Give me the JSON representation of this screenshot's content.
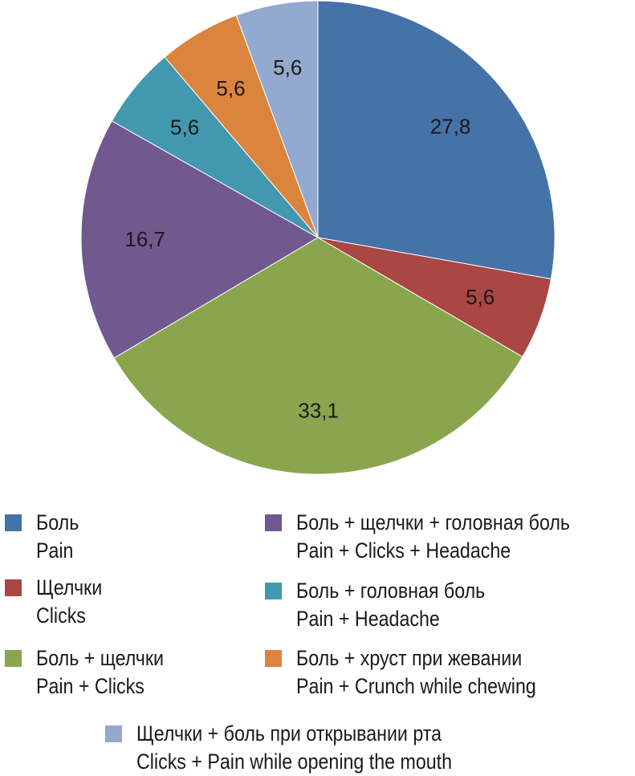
{
  "chart_data": {
    "type": "pie",
    "start_angle_deg": 0,
    "direction": "clockwise",
    "slices": [
      {
        "label_ru": "Боль",
        "label_en": "Pain",
        "value": 27.8,
        "value_text": "27,8",
        "color": "#4572A7"
      },
      {
        "label_ru": "Щелчки",
        "label_en": "Clicks",
        "value": 5.6,
        "value_text": "5,6",
        "color": "#AA4643"
      },
      {
        "label_ru": "Боль + щелчки",
        "label_en": "Pain + Clicks",
        "value": 33.1,
        "value_text": "33,1",
        "color": "#89A54E"
      },
      {
        "label_ru": "Боль + щелчки + головная боль",
        "label_en": "Pain + Clicks + Headache",
        "value": 16.7,
        "value_text": "16,7",
        "color": "#71588F"
      },
      {
        "label_ru": "Боль + головная боль",
        "label_en": "Pain + Headache",
        "value": 5.6,
        "value_text": "5,6",
        "color": "#4198AF"
      },
      {
        "label_ru": "Боль + хруст при жевании",
        "label_en": "Pain + Crunch while chewing",
        "value": 5.6,
        "value_text": "5,6",
        "color": "#DB843D"
      },
      {
        "label_ru": "Щелчки + боль при открывании рта",
        "label_en": "Clicks + Pain while opening the mouth",
        "value": 5.6,
        "value_text": "5,6",
        "color": "#93A9CF"
      }
    ],
    "legend_placement": "bottom"
  }
}
